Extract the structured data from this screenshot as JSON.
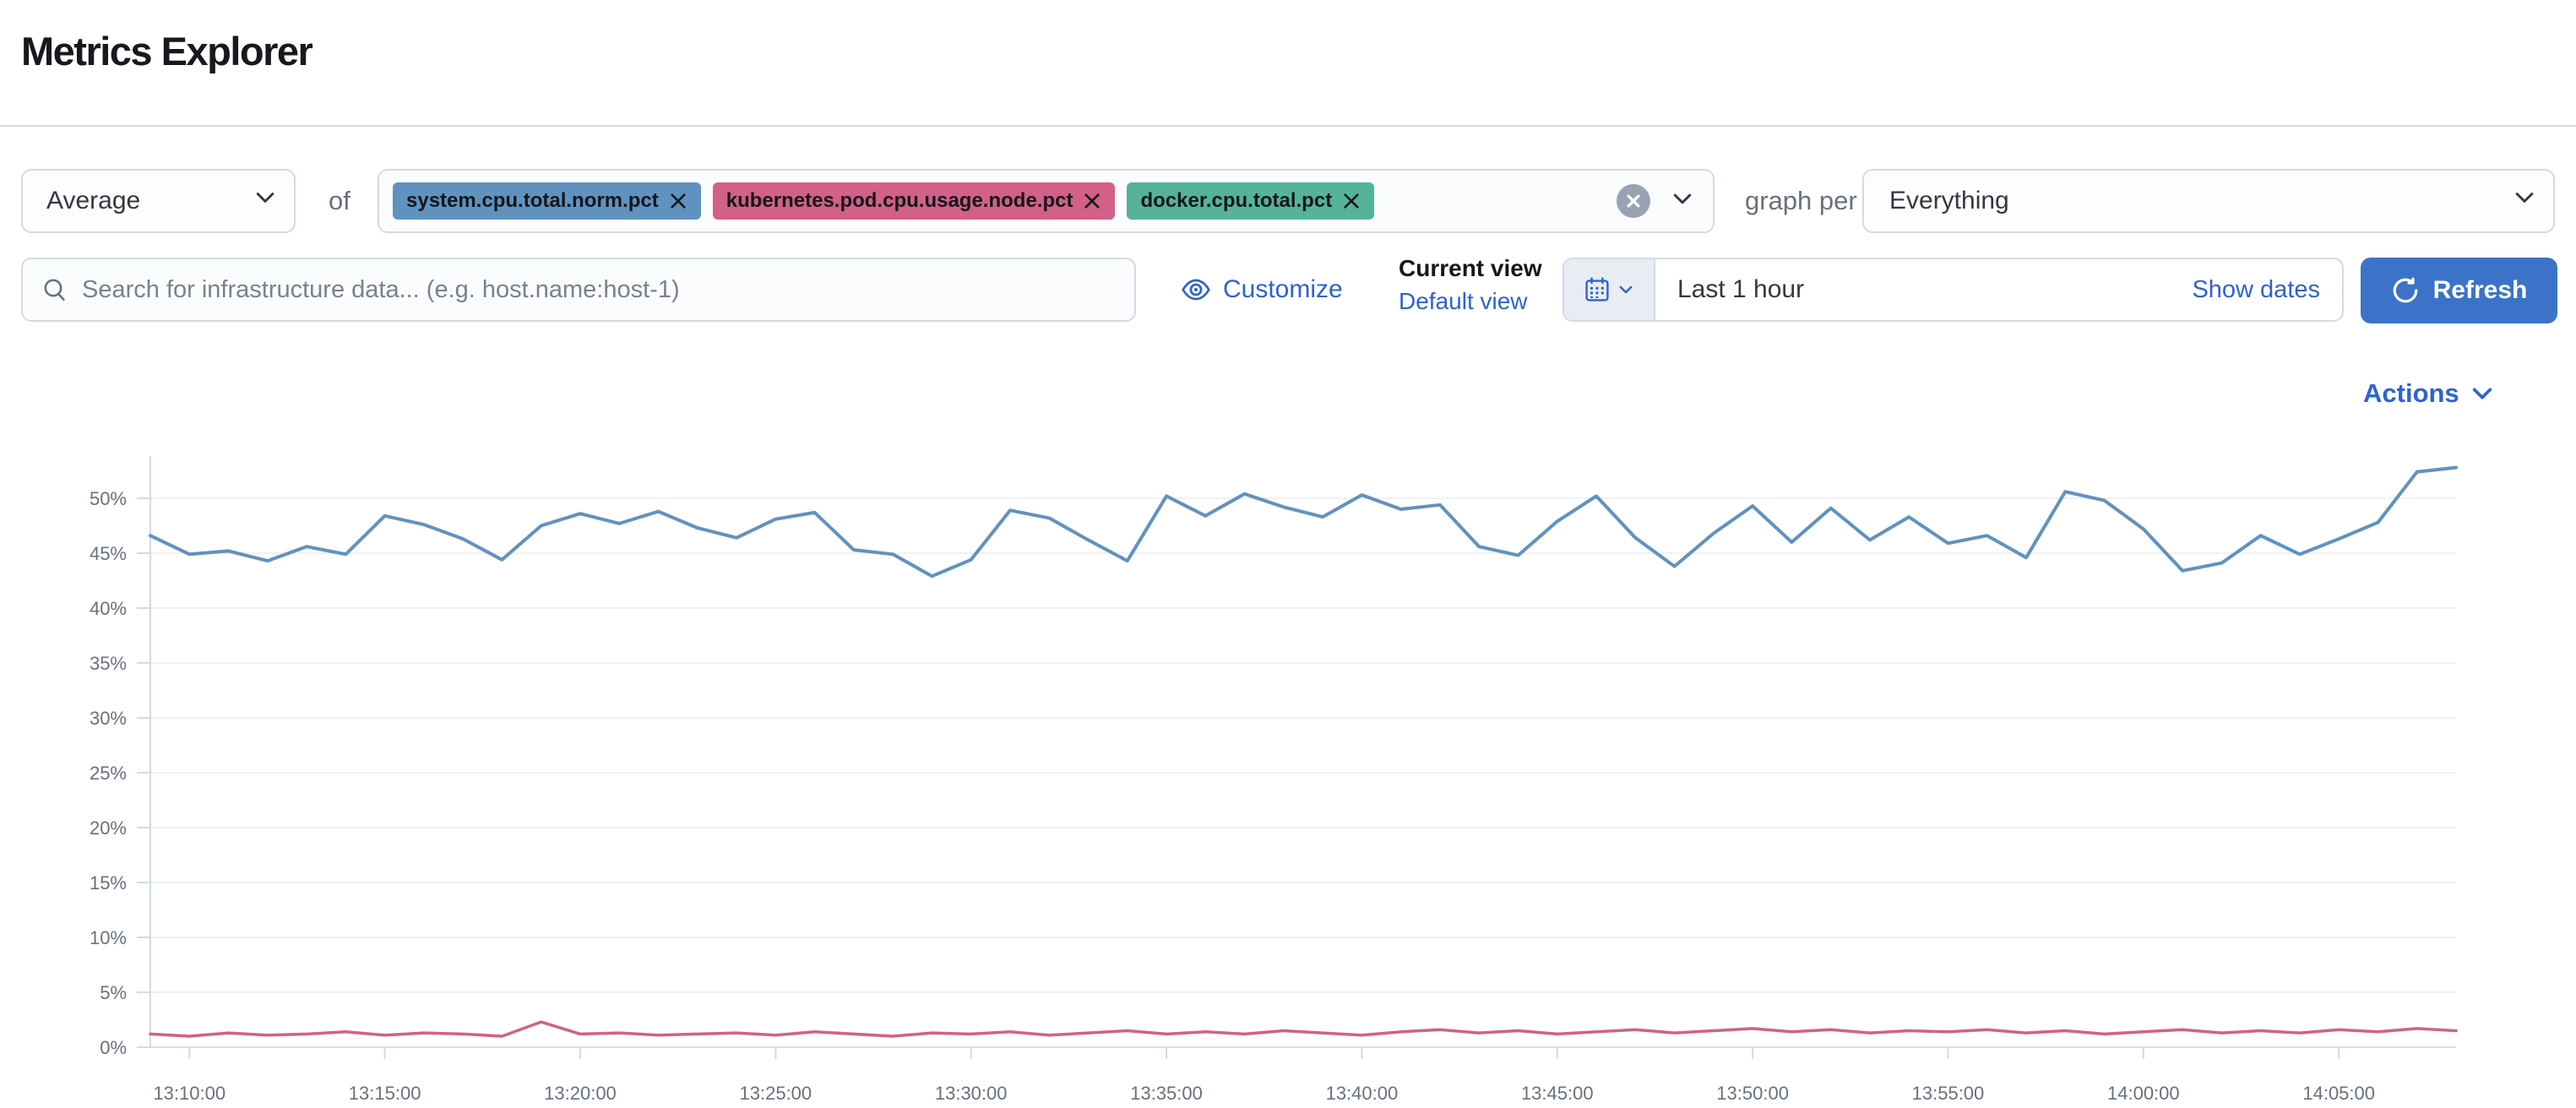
{
  "page": {
    "title": "Metrics Explorer"
  },
  "colors": {
    "title": "#17191e",
    "text": "#343741",
    "muted": "#69707d",
    "border": "#d3dae6",
    "link": "#2d62d2",
    "button": "#3b73c9",
    "input_bg": "#fbfcfd",
    "quick_bg": "#e9edf3"
  },
  "icons": {
    "aggregation_dropdown": "chevron-down",
    "remove_metric": "cross",
    "metrics_clear": "cross-in-circle",
    "metrics_dropdown": "chevron-down",
    "group_by_dropdown": "chevron-down",
    "search": "magnifier",
    "customize": "eye",
    "date_picker": "calendar",
    "date_picker_dropdown": "chevron-down",
    "refresh": "refresh",
    "actions": "chevron-down"
  },
  "toolbar": {
    "aggregation_value": "Average",
    "of_label": "of",
    "metrics": [
      {
        "label": "system.cpu.total.norm.pct",
        "color": "#6092C0"
      },
      {
        "label": "kubernetes.pod.cpu.usage.node.pct",
        "color": "#D36086"
      },
      {
        "label": "docker.cpu.total.pct",
        "color": "#54B399"
      }
    ],
    "graph_per_label": "graph per",
    "group_by_value": "Everything"
  },
  "searchbar": {
    "placeholder": "Search for infrastructure data... (e.g. host.name:host-1)",
    "customize_label": "Customize",
    "current_view_label": "Current view",
    "view_name": "Default view",
    "time_range": "Last 1 hour",
    "show_dates_label": "Show dates",
    "refresh_label": "Refresh"
  },
  "actions_label": "Actions",
  "chart_data": {
    "type": "line",
    "title": "",
    "xlabel": "",
    "ylabel": "",
    "ylim": [
      0,
      53.8
    ],
    "yticks": [
      0,
      5,
      10,
      15,
      20,
      25,
      30,
      35,
      40,
      45,
      50
    ],
    "ytick_format": "percent",
    "grid": "horizontal",
    "legend": "none",
    "x_times": [
      "13:09:00",
      "13:10:00",
      "13:11:00",
      "13:12:00",
      "13:13:00",
      "13:14:00",
      "13:15:00",
      "13:16:00",
      "13:17:00",
      "13:18:00",
      "13:19:00",
      "13:20:00",
      "13:21:00",
      "13:22:00",
      "13:23:00",
      "13:24:00",
      "13:25:00",
      "13:26:00",
      "13:27:00",
      "13:28:00",
      "13:29:00",
      "13:30:00",
      "13:31:00",
      "13:32:00",
      "13:33:00",
      "13:34:00",
      "13:35:00",
      "13:36:00",
      "13:37:00",
      "13:38:00",
      "13:39:00",
      "13:40:00",
      "13:41:00",
      "13:42:00",
      "13:43:00",
      "13:44:00",
      "13:45:00",
      "13:46:00",
      "13:47:00",
      "13:48:00",
      "13:49:00",
      "13:50:00",
      "13:51:00",
      "13:52:00",
      "13:53:00",
      "13:54:00",
      "13:55:00",
      "13:56:00",
      "13:57:00",
      "13:58:00",
      "13:59:00",
      "14:00:00",
      "14:01:00",
      "14:02:00",
      "14:03:00",
      "14:04:00",
      "14:05:00",
      "14:06:00",
      "14:07:00",
      "14:08:00"
    ],
    "xticklabels": [
      "13:10:00",
      "13:15:00",
      "13:20:00",
      "13:25:00",
      "13:30:00",
      "13:35:00",
      "13:40:00",
      "13:45:00",
      "13:50:00",
      "13:55:00",
      "14:00:00",
      "14:05:00"
    ],
    "series": [
      {
        "name": "system.cpu.total.norm.pct (Average)",
        "color": "#6092C0",
        "unit": "%",
        "values": [
          46.6,
          44.9,
          45.2,
          44.3,
          45.6,
          44.9,
          48.4,
          47.6,
          46.3,
          44.4,
          47.5,
          48.6,
          47.7,
          48.8,
          47.3,
          46.4,
          48.1,
          48.7,
          45.3,
          44.9,
          42.9,
          44.4,
          48.9,
          48.2,
          46.2,
          44.3,
          50.2,
          48.4,
          50.4,
          49.2,
          48.3,
          50.3,
          49.0,
          49.4,
          45.6,
          44.8,
          47.9,
          50.2,
          46.4,
          43.8,
          46.8,
          49.3,
          46.0,
          49.1,
          46.2,
          48.3,
          45.9,
          46.6,
          44.6,
          50.6,
          49.8,
          47.2,
          43.4,
          44.1,
          46.6,
          44.9,
          46.3,
          47.8,
          52.4,
          52.8
        ]
      },
      {
        "name": "kubernetes.pod.cpu.usage.node.pct (Average)",
        "color": "#D36086",
        "unit": "%",
        "values": [
          1.2,
          1.0,
          1.3,
          1.1,
          1.2,
          1.4,
          1.1,
          1.3,
          1.2,
          1.0,
          2.3,
          1.2,
          1.3,
          1.1,
          1.2,
          1.3,
          1.1,
          1.4,
          1.2,
          1.0,
          1.3,
          1.2,
          1.4,
          1.1,
          1.3,
          1.5,
          1.2,
          1.4,
          1.2,
          1.5,
          1.3,
          1.1,
          1.4,
          1.6,
          1.3,
          1.5,
          1.2,
          1.4,
          1.6,
          1.3,
          1.5,
          1.7,
          1.4,
          1.6,
          1.3,
          1.5,
          1.4,
          1.6,
          1.3,
          1.5,
          1.2,
          1.4,
          1.6,
          1.3,
          1.5,
          1.3,
          1.6,
          1.4,
          1.7,
          1.5
        ]
      }
    ]
  }
}
